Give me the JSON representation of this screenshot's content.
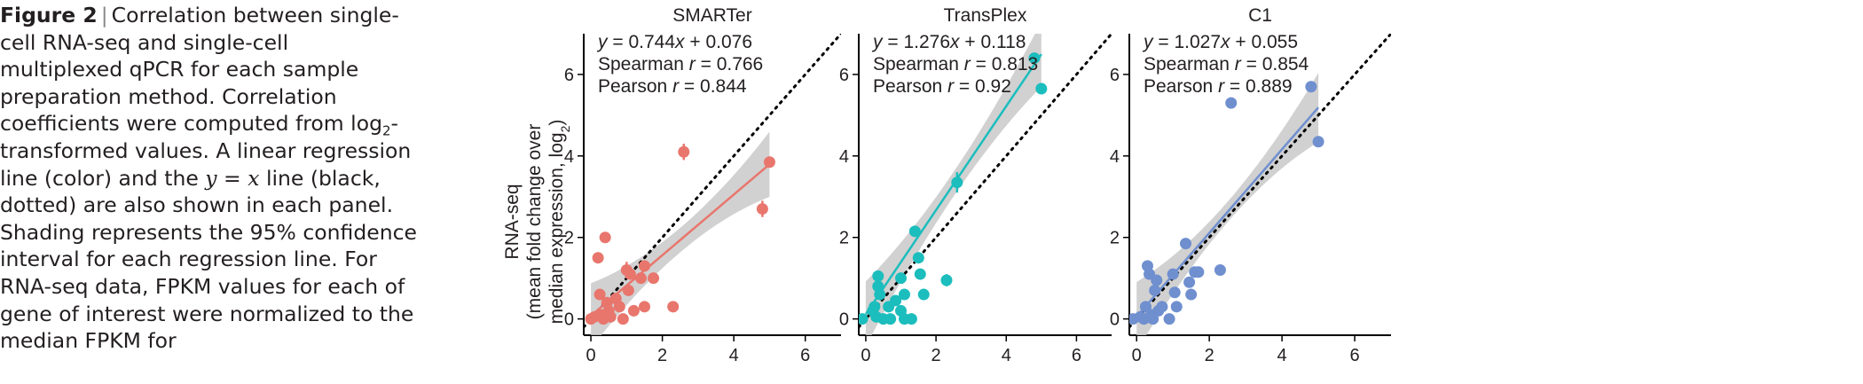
{
  "caption": {
    "label": "Figure 2",
    "separator": "|",
    "parts": [
      "Correlation between single-cell RNA-seq and single-cell multiplexed qPCR for each sample preparation method. Correlation coefficients were computed from log",
      "2",
      "-transformed values. A linear regression line (color) and the ",
      "y",
      " = ",
      "x",
      " line (black, dotted) are also shown in each panel. Shading represents the 95% confidence interval for each regression line. For RNA-seq data, FPKM values for each of gene of interest were normalized to the median FPKM for"
    ]
  },
  "ylabel_lines": [
    "RNA-seq",
    "(mean fold change over",
    "median expression, log2)"
  ],
  "chart_data": [
    {
      "type": "scatter",
      "title": "SMARTer",
      "color": "#e8766d",
      "xlim": [
        -0.2,
        7
      ],
      "ylim": [
        -0.4,
        7
      ],
      "xticks": [
        0,
        2,
        4,
        6
      ],
      "yticks": [
        0,
        2,
        4,
        6
      ],
      "annotations": [
        "y = 0.744x + 0.076",
        "Spearman r = 0.766",
        "Pearson r = 0.844"
      ],
      "fit": {
        "slope": 0.744,
        "intercept": 0.076,
        "x": [
          0,
          5
        ]
      },
      "ci_width": [
        0.3,
        0.8
      ],
      "identity_line": true,
      "points": [
        [
          0.0,
          0.0
        ],
        [
          0.1,
          0.05
        ],
        [
          0.2,
          1.5
        ],
        [
          0.25,
          0.6
        ],
        [
          0.3,
          0.1
        ],
        [
          0.35,
          0.0
        ],
        [
          0.4,
          2.0
        ],
        [
          0.45,
          0.4
        ],
        [
          0.5,
          0.2
        ],
        [
          0.55,
          0.05
        ],
        [
          0.7,
          0.5
        ],
        [
          0.8,
          0.3
        ],
        [
          0.9,
          0.0
        ],
        [
          1.0,
          1.2
        ],
        [
          1.05,
          0.7
        ],
        [
          1.1,
          1.1
        ],
        [
          1.2,
          0.2
        ],
        [
          1.4,
          1.0
        ],
        [
          1.5,
          1.3
        ],
        [
          1.5,
          0.3
        ],
        [
          1.75,
          1.0
        ],
        [
          2.3,
          0.3
        ],
        [
          2.6,
          4.1
        ],
        [
          4.8,
          2.7
        ],
        [
          5.0,
          3.85
        ]
      ],
      "error_bars": [
        [
          2.6,
          4.1,
          0.2
        ],
        [
          4.8,
          2.7,
          0.2
        ],
        [
          1.0,
          1.2,
          0.2
        ],
        [
          0.2,
          1.5,
          0.12
        ]
      ]
    },
    {
      "type": "scatter",
      "title": "TransPlex",
      "color": "#1cbdbd",
      "xlim": [
        -0.2,
        7
      ],
      "ylim": [
        -0.4,
        7
      ],
      "xticks": [
        0,
        2,
        4,
        6
      ],
      "yticks": [
        0,
        2,
        4,
        6
      ],
      "annotations": [
        "y = 1.276x + 0.118",
        "Spearman r = 0.813",
        "Pearson r = 0.92"
      ],
      "fit": {
        "slope": 1.276,
        "intercept": 0.118,
        "x": [
          0,
          5
        ]
      },
      "ci_width": [
        0.3,
        0.8
      ],
      "identity_line": true,
      "points": [
        [
          -0.1,
          0.0
        ],
        [
          0.2,
          0.2
        ],
        [
          0.25,
          0.3
        ],
        [
          0.3,
          0.05
        ],
        [
          0.35,
          0.8
        ],
        [
          0.35,
          1.05
        ],
        [
          0.4,
          0.6
        ],
        [
          0.5,
          0.0
        ],
        [
          0.65,
          0.3
        ],
        [
          0.7,
          0.0
        ],
        [
          0.85,
          0.45
        ],
        [
          1.0,
          1.0
        ],
        [
          1.0,
          0.2
        ],
        [
          1.1,
          0.0
        ],
        [
          1.1,
          0.6
        ],
        [
          1.3,
          0.0
        ],
        [
          1.4,
          2.15
        ],
        [
          1.5,
          1.5
        ],
        [
          1.55,
          1.1
        ],
        [
          1.65,
          0.6
        ],
        [
          2.3,
          0.95
        ],
        [
          2.6,
          3.35
        ],
        [
          4.8,
          6.4
        ],
        [
          5.0,
          5.65
        ]
      ],
      "error_bars": [
        [
          2.6,
          3.35,
          0.25
        ],
        [
          2.3,
          0.95,
          0.15
        ]
      ]
    },
    {
      "type": "scatter",
      "title": "C1",
      "color": "#6f8fcf",
      "xlim": [
        -0.2,
        7
      ],
      "ylim": [
        -0.4,
        7
      ],
      "xticks": [
        0,
        2,
        4,
        6
      ],
      "yticks": [
        0,
        2,
        4,
        6
      ],
      "annotations": [
        "y = 1.027x + 0.055",
        "Spearman r = 0.854",
        "Pearson r = 0.889"
      ],
      "fit": {
        "slope": 1.027,
        "intercept": 0.055,
        "x": [
          0,
          5
        ]
      },
      "ci_width": [
        0.25,
        0.85
      ],
      "identity_line": true,
      "points": [
        [
          -0.1,
          0.0
        ],
        [
          0.1,
          0.05
        ],
        [
          0.2,
          0.0
        ],
        [
          0.25,
          0.3
        ],
        [
          0.3,
          1.3
        ],
        [
          0.35,
          1.1
        ],
        [
          0.4,
          0.1
        ],
        [
          0.45,
          0.0
        ],
        [
          0.5,
          0.7
        ],
        [
          0.55,
          0.95
        ],
        [
          0.6,
          0.2
        ],
        [
          0.7,
          0.3
        ],
        [
          0.9,
          0.0
        ],
        [
          1.0,
          1.1
        ],
        [
          1.05,
          0.65
        ],
        [
          1.1,
          0.3
        ],
        [
          1.35,
          1.85
        ],
        [
          1.45,
          0.9
        ],
        [
          1.5,
          0.6
        ],
        [
          1.6,
          1.15
        ],
        [
          1.7,
          1.15
        ],
        [
          2.3,
          1.2
        ],
        [
          2.6,
          5.3
        ],
        [
          4.8,
          5.7
        ],
        [
          5.0,
          4.35
        ]
      ],
      "error_bars": []
    }
  ]
}
